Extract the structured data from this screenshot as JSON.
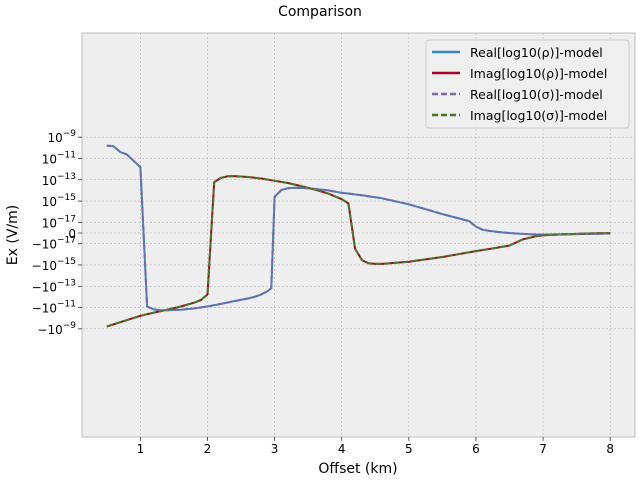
{
  "chart_data": {
    "type": "line",
    "title": "Comparison",
    "xlabel": "Offset (km)",
    "ylabel": "Ex (V/m)",
    "xlim": [
      0.13,
      8.37
    ],
    "y_scale": "symlog",
    "y_linthresh": 1e-17,
    "grid": true,
    "legend_position": "upper right",
    "x_ticks": [
      1,
      2,
      3,
      4,
      5,
      6,
      7,
      8
    ],
    "x_tick_labels": [
      "1",
      "2",
      "3",
      "4",
      "5",
      "6",
      "7",
      "8"
    ],
    "y_ticks": [
      {
        "label": "10^-9",
        "base": "10",
        "exp": "−9",
        "sign": ""
      },
      {
        "label": "10^-11",
        "base": "10",
        "exp": "−11",
        "sign": ""
      },
      {
        "label": "10^-13",
        "base": "10",
        "exp": "−13",
        "sign": ""
      },
      {
        "label": "10^-15",
        "base": "10",
        "exp": "−15",
        "sign": ""
      },
      {
        "label": "10^-17",
        "base": "10",
        "exp": "−17",
        "sign": ""
      },
      {
        "label": "0",
        "base": "0",
        "exp": "",
        "sign": ""
      },
      {
        "label": "-10^-17",
        "base": "10",
        "exp": "−17",
        "sign": "−"
      },
      {
        "label": "-10^-15",
        "base": "10",
        "exp": "−15",
        "sign": "−"
      },
      {
        "label": "-10^-13",
        "base": "10",
        "exp": "−13",
        "sign": "−"
      },
      {
        "label": "-10^-11",
        "base": "10",
        "exp": "−11",
        "sign": "−"
      },
      {
        "label": "-10^-9",
        "base": "10",
        "exp": "−9",
        "sign": "−"
      }
    ],
    "series": [
      {
        "name": "Real[log10(ρ)]-model",
        "color": "#348ABD",
        "style": "solid",
        "x": [
          0.5,
          0.6,
          0.7,
          0.8,
          1.0,
          1.1,
          1.2,
          1.3,
          1.4,
          1.6,
          1.8,
          2.0,
          2.2,
          2.4,
          2.6,
          2.7,
          2.8,
          2.9,
          2.95,
          3.0,
          3.1,
          3.2,
          3.3,
          3.5,
          3.8,
          4.0,
          4.3,
          4.6,
          5.0,
          5.5,
          5.9,
          6.0,
          6.1,
          6.2,
          6.4,
          6.6,
          6.8,
          7.0,
          7.2,
          7.5,
          8.0
        ],
        "y": [
          1.6e-10,
          1.4e-10,
          4e-11,
          2.3e-11,
          1.5e-12,
          -8e-12,
          -1.5e-11,
          -1.8e-11,
          -1.8e-11,
          -1.6e-11,
          -1.2e-11,
          -8e-12,
          -4.5e-12,
          -2.5e-12,
          -1.4e-12,
          -1e-12,
          -6e-13,
          -2.8e-13,
          -1.5e-13,
          2.5e-15,
          1.1e-14,
          1.6e-14,
          1.8e-14,
          1.6e-14,
          1e-14,
          6e-15,
          3.5e-15,
          1.8e-15,
          5e-16,
          6e-17,
          1.3e-17,
          6e-18,
          3e-18,
          2e-18,
          5e-19,
          -5e-19,
          -1.2e-18,
          -1.5e-18,
          -1.3e-18,
          -1e-18,
          -5e-19
        ]
      },
      {
        "name": "Imag[log10(ρ)]-model",
        "color": "#A60628",
        "style": "solid",
        "x": [
          0.5,
          0.8,
          1.0,
          1.2,
          1.4,
          1.6,
          1.8,
          1.9,
          2.0,
          2.1,
          2.2,
          2.3,
          2.4,
          2.6,
          2.8,
          3.0,
          3.2,
          3.4,
          3.6,
          3.8,
          4.0,
          4.1,
          4.2,
          4.3,
          4.4,
          4.5,
          4.6,
          5.0,
          5.5,
          6.0,
          6.3,
          6.5,
          6.7,
          6.9,
          7.0,
          7.2,
          7.5,
          7.8,
          8.0
        ],
        "y": [
          -6e-10,
          -1.5e-10,
          -6e-11,
          -3e-11,
          -1.6e-11,
          -8e-12,
          -3.5e-12,
          -2e-12,
          -6e-13,
          6e-14,
          1.5e-13,
          2.1e-13,
          2.2e-13,
          1.8e-13,
          1.3e-13,
          8e-14,
          5e-14,
          2.5e-14,
          1.2e-14,
          5e-15,
          1.5e-15,
          6e-16,
          -3e-17,
          -3.5e-16,
          -7e-16,
          -8e-16,
          -8e-16,
          -5e-16,
          -1.8e-16,
          -5e-17,
          -2.5e-17,
          -1.5e-17,
          -6e-18,
          -3e-18,
          -2.2e-18,
          -1.5e-18,
          -8e-19,
          -3e-19,
          -1e-19
        ]
      },
      {
        "name": "Real[log10(σ)]-model",
        "color": "#7A68A6",
        "style": "dashed",
        "x": [
          0.5,
          0.6,
          0.7,
          0.8,
          1.0,
          1.1,
          1.2,
          1.3,
          1.4,
          1.6,
          1.8,
          2.0,
          2.2,
          2.4,
          2.6,
          2.7,
          2.8,
          2.9,
          2.95,
          3.0,
          3.1,
          3.2,
          3.3,
          3.5,
          3.8,
          4.0,
          4.3,
          4.6,
          5.0,
          5.5,
          5.9,
          6.0,
          6.1,
          6.2,
          6.4,
          6.6,
          6.8,
          7.0,
          7.2,
          7.5,
          8.0
        ],
        "y": [
          1.6e-10,
          1.4e-10,
          4e-11,
          2.3e-11,
          1.5e-12,
          -8e-12,
          -1.5e-11,
          -1.8e-11,
          -1.8e-11,
          -1.6e-11,
          -1.2e-11,
          -8e-12,
          -4.5e-12,
          -2.5e-12,
          -1.4e-12,
          -1e-12,
          -6e-13,
          -2.8e-13,
          -1.5e-13,
          2.5e-15,
          1.1e-14,
          1.6e-14,
          1.8e-14,
          1.6e-14,
          1e-14,
          6e-15,
          3.5e-15,
          1.8e-15,
          5e-16,
          6e-17,
          1.3e-17,
          6e-18,
          3e-18,
          2e-18,
          5e-19,
          -5e-19,
          -1.2e-18,
          -1.5e-18,
          -1.3e-18,
          -1e-18,
          -5e-19
        ]
      },
      {
        "name": "Imag[log10(σ)]-model",
        "color": "#467821",
        "style": "dashed",
        "x": [
          0.5,
          0.8,
          1.0,
          1.2,
          1.4,
          1.6,
          1.8,
          1.9,
          2.0,
          2.1,
          2.2,
          2.3,
          2.4,
          2.6,
          2.8,
          3.0,
          3.2,
          3.4,
          3.6,
          3.8,
          4.0,
          4.1,
          4.2,
          4.3,
          4.4,
          4.5,
          4.6,
          5.0,
          5.5,
          6.0,
          6.3,
          6.5,
          6.7,
          6.9,
          7.0,
          7.2,
          7.5,
          7.8,
          8.0
        ],
        "y": [
          -6e-10,
          -1.5e-10,
          -6e-11,
          -3e-11,
          -1.6e-11,
          -8e-12,
          -3.5e-12,
          -2e-12,
          -6e-13,
          6e-14,
          1.5e-13,
          2.1e-13,
          2.2e-13,
          1.8e-13,
          1.3e-13,
          8e-14,
          5e-14,
          2.5e-14,
          1.2e-14,
          5e-15,
          1.5e-15,
          6e-16,
          -3e-17,
          -3.5e-16,
          -7e-16,
          -8e-16,
          -8e-16,
          -5e-16,
          -1.8e-16,
          -5e-17,
          -2.5e-17,
          -1.5e-17,
          -6e-18,
          -3e-18,
          -2.2e-18,
          -1.5e-18,
          -8e-19,
          -3e-19,
          -1e-19
        ]
      }
    ]
  }
}
